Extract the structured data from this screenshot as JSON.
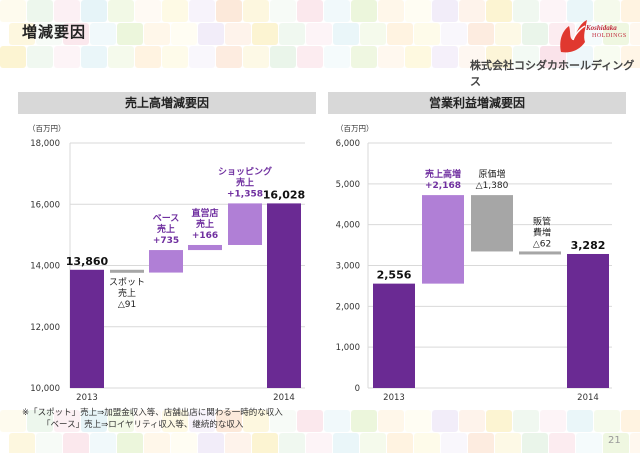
{
  "page": {
    "title": "増減要因",
    "number": "21"
  },
  "logo": {
    "brand_line1": "Koshidaka",
    "brand_line2": "HOLDINGS"
  },
  "company_name": "株式会社コシダカホールディングス",
  "colors": {
    "dark_purple": "#6a2a93",
    "light_purple": "#b07fd6",
    "gray": "#a6a6a6",
    "label_purple": "#7030a0"
  },
  "notes": [
    "※「スポット」売上⇒加盟金収入等、店舗出店に関わる一時的な収入",
    "「ベース」売上⇒ロイヤリティ収入等、継続的な収入"
  ],
  "chart_data": [
    {
      "type": "waterfall",
      "title": "売上高増減要因",
      "unit_label": "（百万円）",
      "ylim": [
        10000,
        18000
      ],
      "yticks": [
        "10,000",
        "12,000",
        "14,000",
        "16,000",
        "18,000"
      ],
      "ytick_values": [
        10000,
        12000,
        14000,
        16000,
        18000
      ],
      "bars": [
        {
          "kind": "total",
          "category": "2013",
          "value": 13860,
          "label": "13,860"
        },
        {
          "kind": "decrease",
          "from": 13860,
          "to": 13769,
          "label_lines": [
            "スポット",
            "売上",
            "△91"
          ]
        },
        {
          "kind": "increase",
          "from": 13769,
          "to": 14504,
          "label_lines": [
            "ベース",
            "売上",
            "+735"
          ]
        },
        {
          "kind": "increase",
          "from": 14504,
          "to": 14670,
          "label_lines": [
            "直営店",
            "売上",
            "+166"
          ]
        },
        {
          "kind": "increase",
          "from": 14670,
          "to": 16028,
          "label_lines": [
            "ショッピング",
            "売上",
            "+1,358"
          ]
        },
        {
          "kind": "total",
          "category": "2014",
          "value": 16028,
          "label": "16,028"
        }
      ]
    },
    {
      "type": "waterfall",
      "title": "営業利益増減要因",
      "unit_label": "（百万円）",
      "ylim": [
        0,
        6000
      ],
      "yticks": [
        "0",
        "1,000",
        "2,000",
        "3,000",
        "4,000",
        "5,000",
        "6,000"
      ],
      "ytick_values": [
        0,
        1000,
        2000,
        3000,
        4000,
        5000,
        6000
      ],
      "bars": [
        {
          "kind": "total",
          "category": "2013",
          "value": 2556,
          "label": "2,556"
        },
        {
          "kind": "increase",
          "from": 2556,
          "to": 4724,
          "label_lines": [
            "売上高増",
            "+2,168"
          ]
        },
        {
          "kind": "cost",
          "from": 4724,
          "to": 3344,
          "label_lines": [
            "原価増",
            "△1,380"
          ]
        },
        {
          "kind": "cost",
          "from": 3344,
          "to": 3282,
          "label_lines": [
            "販管",
            "費増",
            "△62"
          ]
        },
        {
          "kind": "total",
          "category": "2014",
          "value": 3282,
          "label": "3,282"
        }
      ]
    }
  ]
}
